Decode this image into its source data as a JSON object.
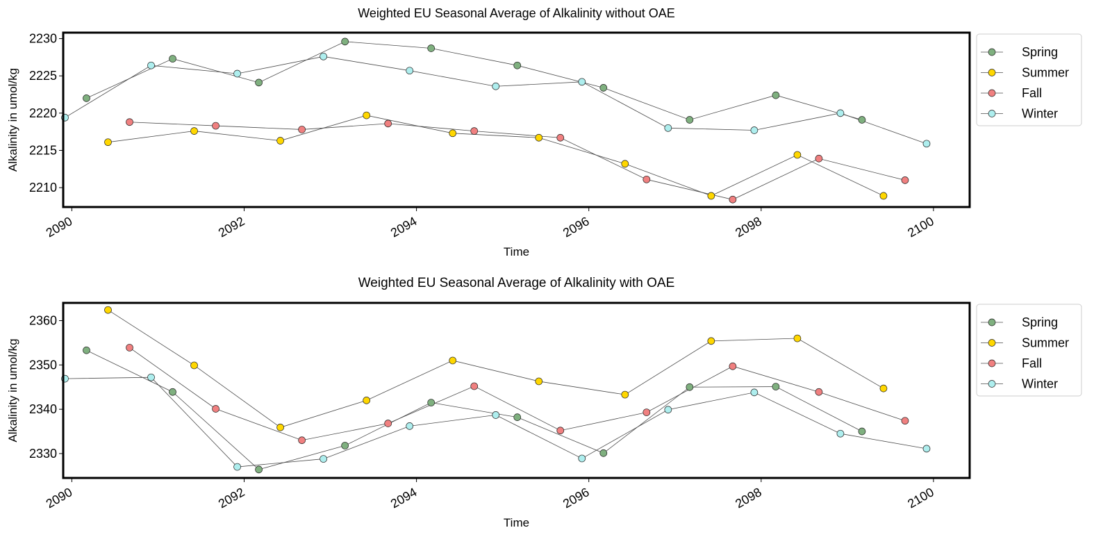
{
  "colors": {
    "Spring": "#7fb07f",
    "Summer": "#ffd700",
    "Fall": "#f08080",
    "Winter": "#aeeeee",
    "line": "#4a4a4a",
    "frame": "#000000"
  },
  "chart_data": [
    {
      "type": "line",
      "title": "Weighted EU Seasonal Average of Alkalinity without OAE",
      "xlabel": "Time",
      "ylabel": "Alkalinity in umol/kg",
      "x_ticks": [
        "2090",
        "2092",
        "2094",
        "2096",
        "2098",
        "2100"
      ],
      "y_ticks": [
        "2210",
        "2215",
        "2220",
        "2225",
        "2230"
      ],
      "xlim": [
        2089.9,
        2100.42
      ],
      "ylim": [
        2207.4,
        2230.8
      ],
      "grid": false,
      "legend_position": "outside-right-top",
      "series": [
        {
          "name": "Spring",
          "x": [
            2090.17,
            2091.17,
            2092.17,
            2093.17,
            2094.17,
            2095.17,
            2096.17,
            2097.17,
            2098.17,
            2099.17
          ],
          "values": [
            2222.0,
            2227.3,
            2224.1,
            2229.6,
            2228.7,
            2226.4,
            2223.4,
            2219.1,
            2222.4,
            2219.1
          ]
        },
        {
          "name": "Summer",
          "x": [
            2090.42,
            2091.42,
            2092.42,
            2093.42,
            2094.42,
            2095.42,
            2096.42,
            2097.42,
            2098.42,
            2099.42
          ],
          "values": [
            2216.1,
            2217.6,
            2216.3,
            2219.7,
            2217.3,
            2216.7,
            2213.2,
            2208.9,
            2214.4,
            2208.9
          ]
        },
        {
          "name": "Fall",
          "x": [
            2090.67,
            2091.67,
            2092.67,
            2093.67,
            2094.67,
            2095.67,
            2096.67,
            2097.67,
            2098.67,
            2099.67
          ],
          "values": [
            2218.8,
            2218.3,
            2217.8,
            2218.6,
            2217.6,
            2216.7,
            2211.1,
            2208.4,
            2213.9,
            2211.0
          ]
        },
        {
          "name": "Winter",
          "x": [
            2089.92,
            2090.92,
            2091.92,
            2092.92,
            2093.92,
            2094.92,
            2095.92,
            2096.92,
            2097.92,
            2098.92,
            2099.92
          ],
          "values": [
            2219.4,
            2226.4,
            2225.3,
            2227.6,
            2225.7,
            2223.6,
            2224.2,
            2218.0,
            2217.7,
            2220.0,
            2215.9
          ]
        }
      ]
    },
    {
      "type": "line",
      "title": "Weighted EU Seasonal Average of Alkalinity with OAE",
      "xlabel": "Time",
      "ylabel": "Alkalinity in umol/kg",
      "x_ticks": [
        "2090",
        "2092",
        "2094",
        "2096",
        "2098",
        "2100"
      ],
      "y_ticks": [
        "2330",
        "2340",
        "2350",
        "2360"
      ],
      "xlim": [
        2089.9,
        2100.42
      ],
      "ylim": [
        2324.5,
        2364.0
      ],
      "grid": false,
      "legend_position": "outside-right-top",
      "series": [
        {
          "name": "Spring",
          "x": [
            2090.17,
            2091.17,
            2092.17,
            2093.17,
            2094.17,
            2095.17,
            2096.17,
            2097.17,
            2098.17,
            2099.17
          ],
          "values": [
            2353.3,
            2343.9,
            2326.4,
            2331.8,
            2341.5,
            2338.2,
            2330.1,
            2345.0,
            2345.1,
            2335.0
          ]
        },
        {
          "name": "Summer",
          "x": [
            2090.42,
            2091.42,
            2092.42,
            2093.42,
            2094.42,
            2095.42,
            2096.42,
            2097.42,
            2098.42,
            2099.42
          ],
          "values": [
            2362.4,
            2349.9,
            2335.9,
            2342.0,
            2351.0,
            2346.3,
            2343.3,
            2355.4,
            2356.0,
            2344.7
          ]
        },
        {
          "name": "Fall",
          "x": [
            2090.67,
            2091.67,
            2092.67,
            2093.67,
            2094.67,
            2095.67,
            2096.67,
            2097.67,
            2098.67,
            2099.67
          ],
          "values": [
            2353.9,
            2340.1,
            2333.0,
            2336.8,
            2345.2,
            2335.2,
            2339.3,
            2349.7,
            2343.9,
            2337.4
          ]
        },
        {
          "name": "Winter",
          "x": [
            2089.92,
            2090.92,
            2091.92,
            2092.92,
            2093.92,
            2094.92,
            2095.92,
            2096.92,
            2097.92,
            2098.92,
            2099.92
          ],
          "values": [
            2346.9,
            2347.2,
            2327.0,
            2328.8,
            2336.2,
            2338.7,
            2328.9,
            2339.9,
            2343.8,
            2334.5,
            2331.1
          ]
        }
      ]
    }
  ]
}
